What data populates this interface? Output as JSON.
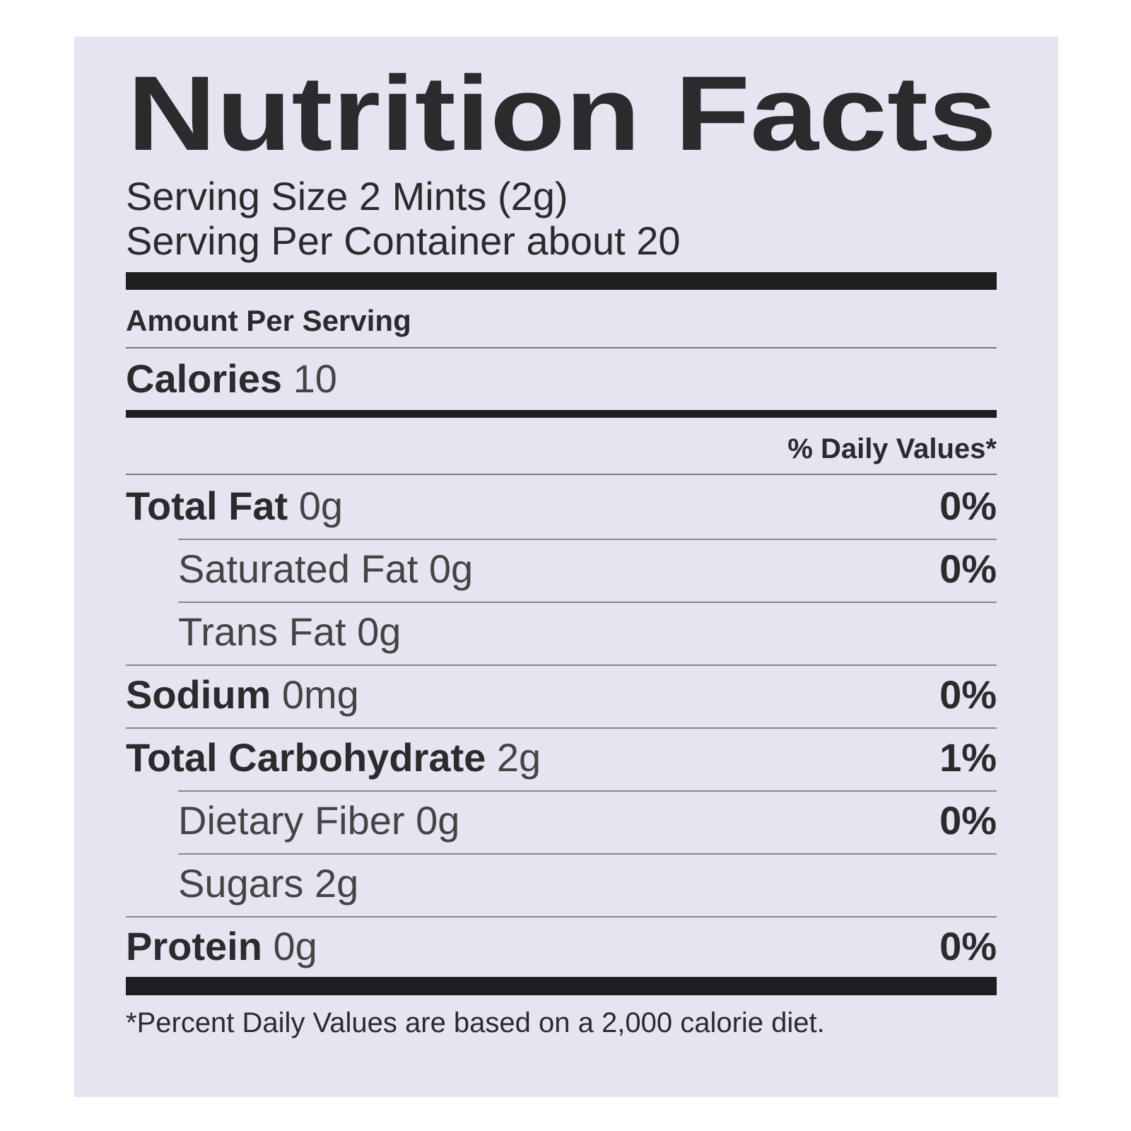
{
  "title": "Nutrition Facts",
  "serving_size": "Serving Size 2 Mints  (2g)",
  "servings_per_container": "Serving Per Container about 20",
  "amount_per_serving": "Amount Per Serving",
  "calories": {
    "label": "Calories",
    "value": "10"
  },
  "daily_values_header": "% Daily Values*",
  "nutrients": [
    {
      "name": "Total Fat",
      "amount": "0g",
      "daily_value": "0%",
      "sub": [
        {
          "name": "Saturated Fat",
          "amount": "0g",
          "daily_value": "0%"
        },
        {
          "name": "Trans Fat",
          "amount": "0g"
        }
      ]
    },
    {
      "name": "Sodium",
      "amount": "0mg",
      "daily_value": "0%"
    },
    {
      "name": "Total Carbohydrate",
      "amount": "2g",
      "daily_value": "1%",
      "sub": [
        {
          "name": "Dietary Fiber",
          "amount": "0g",
          "daily_value": "0%"
        },
        {
          "name": "Sugars",
          "amount": "2g"
        }
      ]
    },
    {
      "name": "Protein",
      "amount": "0g",
      "daily_value": "0%"
    }
  ],
  "footnote": "*Percent Daily Values are based on a 2,000 calorie diet."
}
